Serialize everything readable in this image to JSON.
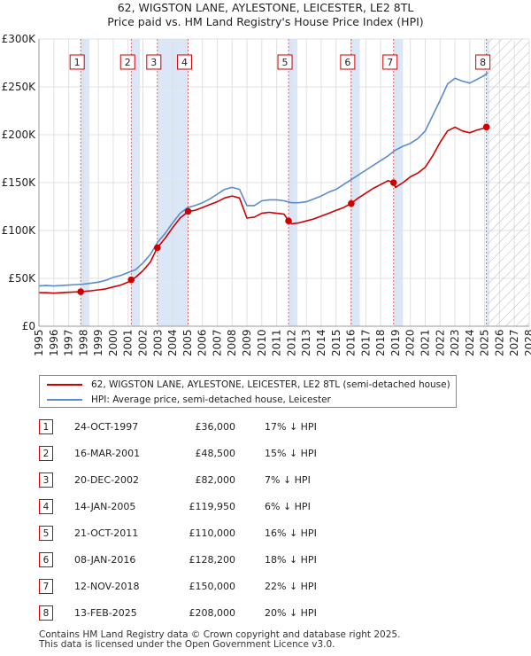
{
  "title_line1": "62, WIGSTON LANE, AYLESTONE, LEICESTER, LE2 8TL",
  "title_line2": "Price paid vs. HM Land Registry's House Price Index (HPI)",
  "colors": {
    "property": "#cc0000",
    "hpi": "#5b8bc9",
    "shade": "#dbe7f7",
    "marker_border": "#cc0000"
  },
  "legend": {
    "property": "62, WIGSTON LANE, AYLESTONE, LEICESTER, LE2 8TL (semi-detached house)",
    "hpi": "HPI: Average price, semi-detached house, Leicester"
  },
  "sales": [
    {
      "num": "1",
      "date": "24-OCT-1997",
      "price": "£36,000",
      "hpi": "17% ↓ HPI"
    },
    {
      "num": "2",
      "date": "16-MAR-2001",
      "price": "£48,500",
      "hpi": "15% ↓ HPI"
    },
    {
      "num": "3",
      "date": "20-DEC-2002",
      "price": "£82,000",
      "hpi": "7% ↓ HPI"
    },
    {
      "num": "4",
      "date": "14-JAN-2005",
      "price": "£119,950",
      "hpi": "6% ↓ HPI"
    },
    {
      "num": "5",
      "date": "21-OCT-2011",
      "price": "£110,000",
      "hpi": "16% ↓ HPI"
    },
    {
      "num": "6",
      "date": "08-JAN-2016",
      "price": "£128,200",
      "hpi": "18% ↓ HPI"
    },
    {
      "num": "7",
      "date": "12-NOV-2018",
      "price": "£150,000",
      "hpi": "22% ↓ HPI"
    },
    {
      "num": "8",
      "date": "13-FEB-2025",
      "price": "£208,000",
      "hpi": "20% ↓ HPI"
    }
  ],
  "footer_line1": "Contains HM Land Registry data © Crown copyright and database right 2025.",
  "footer_line2": "This data is licensed under the Open Government Licence v3.0.",
  "chart_data": {
    "type": "line",
    "title": "62, WIGSTON LANE, AYLESTONE, LEICESTER, LE2 8TL — Price paid vs. HM Land Registry's House Price Index (HPI)",
    "xlabel": "",
    "ylabel": "",
    "xlim": [
      1995,
      2028
    ],
    "ylim": [
      0,
      300000
    ],
    "x_ticks": [
      "1995",
      "1996",
      "1997",
      "1998",
      "1999",
      "2000",
      "2001",
      "2002",
      "2003",
      "2004",
      "2005",
      "2006",
      "2007",
      "2008",
      "2009",
      "2010",
      "2011",
      "2012",
      "2013",
      "2014",
      "2015",
      "2016",
      "2017",
      "2018",
      "2019",
      "2020",
      "2021",
      "2022",
      "2023",
      "2024",
      "2025",
      "2026",
      "2027",
      "2028"
    ],
    "y_ticks": [
      {
        "value": 0,
        "label": "£0"
      },
      {
        "value": 50000,
        "label": "£50K"
      },
      {
        "value": 100000,
        "label": "£100K"
      },
      {
        "value": 150000,
        "label": "£150K"
      },
      {
        "value": 200000,
        "label": "£200K"
      },
      {
        "value": 250000,
        "label": "£250K"
      },
      {
        "value": 300000,
        "label": "£300K"
      }
    ],
    "grid": true,
    "forecast_hatch_from": 2025.2,
    "shaded_ranges": [
      [
        1997.8,
        1998.4
      ],
      [
        2001.2,
        2001.8
      ],
      [
        2003.0,
        2005.05
      ],
      [
        2011.8,
        2012.4
      ],
      [
        2016.02,
        2016.6
      ],
      [
        2018.87,
        2019.5
      ],
      [
        2025.12,
        2025.3
      ]
    ],
    "series": [
      {
        "name": "HPI: Average price, semi-detached house, Leicester",
        "color": "#5b8bc9",
        "x": [
          1995.0,
          1995.5,
          1996.0,
          1996.5,
          1997.0,
          1997.5,
          1998.0,
          1998.5,
          1999.0,
          1999.5,
          2000.0,
          2000.5,
          2001.0,
          2001.5,
          2002.0,
          2002.5,
          2003.0,
          2003.5,
          2004.0,
          2004.5,
          2005.0,
          2005.5,
          2006.0,
          2006.5,
          2007.0,
          2007.5,
          2008.0,
          2008.5,
          2009.0,
          2009.5,
          2010.0,
          2010.5,
          2011.0,
          2011.5,
          2012.0,
          2012.5,
          2013.0,
          2013.5,
          2014.0,
          2014.5,
          2015.0,
          2015.5,
          2016.0,
          2016.5,
          2017.0,
          2017.5,
          2018.0,
          2018.5,
          2019.0,
          2019.5,
          2020.0,
          2020.5,
          2021.0,
          2021.5,
          2022.0,
          2022.5,
          2023.0,
          2023.5,
          2024.0,
          2024.5,
          2025.0,
          2025.2
        ],
        "values": [
          42000,
          42500,
          42000,
          42500,
          43000,
          43500,
          44000,
          45000,
          46000,
          48000,
          51000,
          53000,
          56000,
          59000,
          66000,
          75000,
          88000,
          97000,
          108000,
          118000,
          124000,
          126000,
          129000,
          133000,
          138000,
          143000,
          145000,
          143000,
          126000,
          126000,
          131000,
          132000,
          132000,
          131000,
          129000,
          129000,
          130000,
          133000,
          136000,
          140000,
          143000,
          148000,
          153000,
          158000,
          163000,
          168000,
          173000,
          178000,
          184000,
          188000,
          191000,
          196000,
          204000,
          220000,
          236000,
          253000,
          259000,
          256000,
          254000,
          258000,
          262000,
          265000
        ]
      },
      {
        "name": "62, WIGSTON LANE, AYLESTONE, LEICESTER, LE2 8TL (semi-detached house)",
        "color": "#cc0000",
        "x": [
          1995.0,
          1995.5,
          1996.0,
          1996.5,
          1997.0,
          1997.5,
          1997.81,
          1998.5,
          1999.0,
          1999.5,
          2000.0,
          2000.5,
          2001.0,
          2001.21,
          2001.5,
          2002.0,
          2002.5,
          2002.97,
          2003.5,
          2004.0,
          2004.5,
          2005.04,
          2005.5,
          2006.0,
          2006.5,
          2007.0,
          2007.5,
          2008.0,
          2008.5,
          2009.0,
          2009.5,
          2010.0,
          2010.5,
          2011.0,
          2011.5,
          2011.8,
          2012.0,
          2012.5,
          2013.0,
          2013.5,
          2014.0,
          2014.5,
          2015.0,
          2015.5,
          2016.02,
          2016.5,
          2017.0,
          2017.5,
          2018.0,
          2018.5,
          2018.87,
          2019.0,
          2019.5,
          2020.0,
          2020.5,
          2021.0,
          2021.5,
          2022.0,
          2022.5,
          2023.0,
          2023.5,
          2024.0,
          2024.5,
          2025.0,
          2025.12,
          2025.3
        ],
        "values": [
          35000,
          35000,
          34500,
          35000,
          35500,
          35800,
          36000,
          37000,
          38000,
          39000,
          41000,
          43000,
          46000,
          48500,
          51000,
          58000,
          67000,
          82000,
          92000,
          103000,
          113000,
          119950,
          121000,
          124000,
          127000,
          130000,
          134000,
          136000,
          134000,
          113000,
          114000,
          118000,
          119000,
          118000,
          117000,
          110000,
          107000,
          108000,
          110000,
          112000,
          115000,
          118000,
          121000,
          124000,
          128200,
          134000,
          139000,
          144000,
          148000,
          152000,
          150000,
          145000,
          150000,
          156000,
          160000,
          166000,
          178000,
          192000,
          204000,
          208000,
          204000,
          202000,
          205000,
          207000,
          208000,
          209000
        ]
      }
    ],
    "sale_points": [
      {
        "label": "1",
        "x": 1997.81,
        "y": 36000
      },
      {
        "label": "2",
        "x": 2001.21,
        "y": 48500
      },
      {
        "label": "3",
        "x": 2002.97,
        "y": 82000
      },
      {
        "label": "4",
        "x": 2005.04,
        "y": 119950
      },
      {
        "label": "5",
        "x": 2011.8,
        "y": 110000
      },
      {
        "label": "6",
        "x": 2016.02,
        "y": 128200
      },
      {
        "label": "7",
        "x": 2018.87,
        "y": 150000
      },
      {
        "label": "8",
        "x": 2025.12,
        "y": 208000
      }
    ]
  }
}
